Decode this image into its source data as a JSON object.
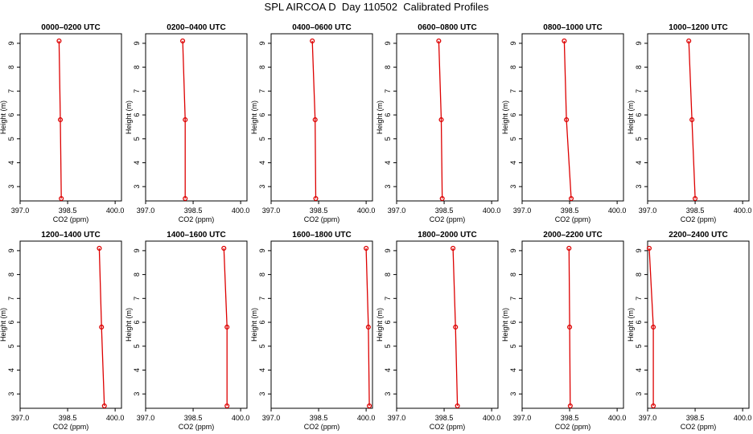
{
  "title": "SPL AIRCOA D  Day 110502  Calibrated Profiles",
  "colors": {
    "line": "#dd0000",
    "axis": "#000000",
    "background": "#ffffff"
  },
  "chart_data": [
    {
      "type": "line",
      "title": "0000–0200 UTC",
      "xlabel": "CO2 (ppm)",
      "ylabel": "Height (m)",
      "xlim": [
        397.0,
        400.2
      ],
      "ylim": [
        2.4,
        9.4
      ],
      "xticks": [
        "397.0",
        "398.5",
        "400.0"
      ],
      "yticks": [
        "3",
        "4",
        "5",
        "6",
        "7",
        "8",
        "9"
      ],
      "x": [
        398.23,
        398.27,
        398.3
      ],
      "y": [
        9.1,
        5.8,
        2.5
      ]
    },
    {
      "type": "line",
      "title": "0200–0400 UTC",
      "xlabel": "CO2 (ppm)",
      "ylabel": "Height (m)",
      "xlim": [
        397.0,
        400.2
      ],
      "ylim": [
        2.4,
        9.4
      ],
      "xticks": [
        "397.0",
        "398.5",
        "400.0"
      ],
      "yticks": [
        "3",
        "4",
        "5",
        "6",
        "7",
        "8",
        "9"
      ],
      "x": [
        398.17,
        398.25,
        398.25
      ],
      "y": [
        9.1,
        5.8,
        2.5
      ]
    },
    {
      "type": "line",
      "title": "0400–0600 UTC",
      "xlabel": "CO2 (ppm)",
      "ylabel": "Height (m)",
      "xlim": [
        397.0,
        400.2
      ],
      "ylim": [
        2.4,
        9.4
      ],
      "xticks": [
        "397.0",
        "398.5",
        "400.0"
      ],
      "yticks": [
        "3",
        "4",
        "5",
        "6",
        "7",
        "8",
        "9"
      ],
      "x": [
        398.3,
        398.39,
        398.41
      ],
      "y": [
        9.1,
        5.8,
        2.5
      ]
    },
    {
      "type": "line",
      "title": "0600–0800 UTC",
      "xlabel": "CO2 (ppm)",
      "ylabel": "Height (m)",
      "xlim": [
        397.0,
        400.2
      ],
      "ylim": [
        2.4,
        9.4
      ],
      "xticks": [
        "397.0",
        "398.5",
        "400.0"
      ],
      "yticks": [
        "3",
        "4",
        "5",
        "6",
        "7",
        "8",
        "9"
      ],
      "x": [
        398.33,
        398.41,
        398.44
      ],
      "y": [
        9.1,
        5.8,
        2.5
      ]
    },
    {
      "type": "line",
      "title": "0800–1000 UTC",
      "xlabel": "CO2 (ppm)",
      "ylabel": "Height (m)",
      "xlim": [
        397.0,
        400.2
      ],
      "ylim": [
        2.4,
        9.4
      ],
      "xticks": [
        "397.0",
        "398.5",
        "400.0"
      ],
      "yticks": [
        "3",
        "4",
        "5",
        "6",
        "7",
        "8",
        "9"
      ],
      "x": [
        398.33,
        398.4,
        398.55
      ],
      "y": [
        9.1,
        5.8,
        2.5
      ]
    },
    {
      "type": "line",
      "title": "1000–1200 UTC",
      "xlabel": "CO2 (ppm)",
      "ylabel": "Height (m)",
      "xlim": [
        397.0,
        400.2
      ],
      "ylim": [
        2.4,
        9.4
      ],
      "xticks": [
        "397.0",
        "398.5",
        "400.0"
      ],
      "yticks": [
        "3",
        "4",
        "5",
        "6",
        "7",
        "8",
        "9"
      ],
      "x": [
        398.3,
        398.4,
        398.5
      ],
      "y": [
        9.1,
        5.8,
        2.5
      ]
    },
    {
      "type": "line",
      "title": "1200–1400 UTC",
      "xlabel": "CO2 (ppm)",
      "ylabel": "Height (m)",
      "xlim": [
        397.0,
        400.2
      ],
      "ylim": [
        2.4,
        9.4
      ],
      "xticks": [
        "397.0",
        "398.5",
        "400.0"
      ],
      "yticks": [
        "3",
        "4",
        "5",
        "6",
        "7",
        "8",
        "9"
      ],
      "x": [
        399.5,
        399.57,
        399.66
      ],
      "y": [
        9.1,
        5.8,
        2.5
      ]
    },
    {
      "type": "line",
      "title": "1400–1600 UTC",
      "xlabel": "CO2 (ppm)",
      "ylabel": "Height (m)",
      "xlim": [
        397.0,
        400.2
      ],
      "ylim": [
        2.4,
        9.4
      ],
      "xticks": [
        "397.0",
        "398.5",
        "400.0"
      ],
      "yticks": [
        "3",
        "4",
        "5",
        "6",
        "7",
        "8",
        "9"
      ],
      "x": [
        399.47,
        399.57,
        399.57
      ],
      "y": [
        9.1,
        5.8,
        2.5
      ]
    },
    {
      "type": "line",
      "title": "1600–1800 UTC",
      "xlabel": "CO2 (ppm)",
      "ylabel": "Height (m)",
      "xlim": [
        397.0,
        400.2
      ],
      "ylim": [
        2.4,
        9.4
      ],
      "xticks": [
        "397.0",
        "398.5",
        "400.0"
      ],
      "yticks": [
        "3",
        "4",
        "5",
        "6",
        "7",
        "8",
        "9"
      ],
      "x": [
        400.0,
        400.07,
        400.1
      ],
      "y": [
        9.1,
        5.8,
        2.5
      ]
    },
    {
      "type": "line",
      "title": "1800–2000 UTC",
      "xlabel": "CO2 (ppm)",
      "ylabel": "Height (m)",
      "xlim": [
        397.0,
        400.2
      ],
      "ylim": [
        2.4,
        9.4
      ],
      "xticks": [
        "397.0",
        "398.5",
        "400.0"
      ],
      "yticks": [
        "3",
        "4",
        "5",
        "6",
        "7",
        "8",
        "9"
      ],
      "x": [
        398.78,
        398.86,
        398.92
      ],
      "y": [
        9.1,
        5.8,
        2.5
      ]
    },
    {
      "type": "line",
      "title": "2000–2200 UTC",
      "xlabel": "CO2 (ppm)",
      "ylabel": "Height (m)",
      "xlim": [
        397.0,
        400.2
      ],
      "ylim": [
        2.4,
        9.4
      ],
      "xticks": [
        "397.0",
        "398.5",
        "400.0"
      ],
      "yticks": [
        "3",
        "4",
        "5",
        "6",
        "7",
        "8",
        "9"
      ],
      "x": [
        398.48,
        398.5,
        398.52
      ],
      "y": [
        9.1,
        5.8,
        2.5
      ]
    },
    {
      "type": "line",
      "title": "2200–2400 UTC",
      "xlabel": "CO2 (ppm)",
      "ylabel": "Height (m)",
      "xlim": [
        397.0,
        400.2
      ],
      "ylim": [
        2.4,
        9.4
      ],
      "xticks": [
        "397.0",
        "398.5",
        "400.0"
      ],
      "yticks": [
        "3",
        "4",
        "5",
        "6",
        "7",
        "8",
        "9"
      ],
      "x": [
        397.05,
        397.18,
        397.18
      ],
      "y": [
        9.1,
        5.8,
        2.5
      ]
    }
  ]
}
